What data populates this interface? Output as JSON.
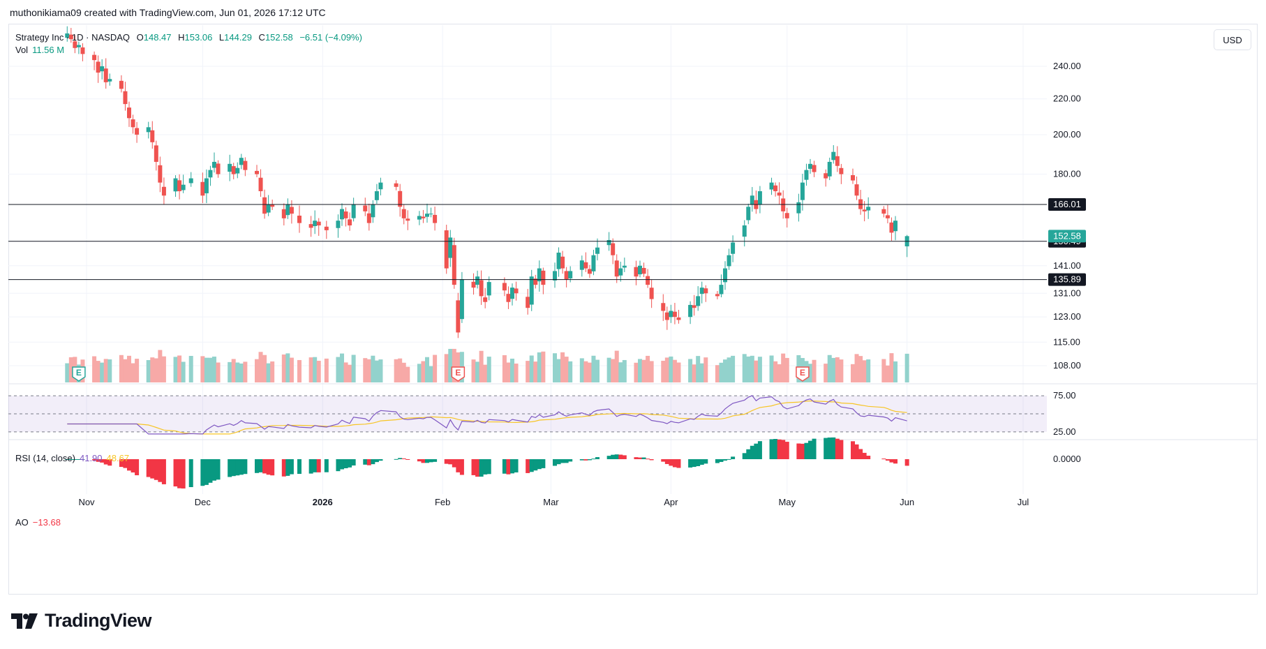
{
  "header": {
    "creator": "muthonikiama09 created with TradingView.com, Jun 01, 2026 17:12 UTC"
  },
  "legend": {
    "symbol": "Strategy Inc · 1D · NASDAQ",
    "open_label": "O",
    "open": "148.47",
    "high_label": "H",
    "high": "153.06",
    "low_label": "L",
    "low": "144.29",
    "close_label": "C",
    "close": "152.58",
    "change": "−6.51 (−4.09%)",
    "vol_label": "Vol",
    "vol": "11.56 M"
  },
  "rsi_legend": {
    "label": "RSI (14, close)",
    "rsi": "41.90",
    "ma": "48.67"
  },
  "ao_legend": {
    "label": "AO",
    "value": "−13.68"
  },
  "currency": "USD",
  "brand": {
    "name": "TradingView"
  },
  "colors": {
    "up": "#26a69a",
    "down": "#ef5350",
    "vol_up": "#92d2cc",
    "vol_down": "#f7a9a7",
    "rsi": "#7e57c2",
    "rsi_ma": "#f7c525",
    "ao_up": "#089981",
    "ao_down": "#f23645"
  },
  "chart_data": {
    "type": "candlestick",
    "symbol": "Strategy Inc",
    "interval": "1D",
    "exchange": "NASDAQ",
    "x_labels": [
      "Nov",
      "Dec",
      "2026",
      "Feb",
      "Mar",
      "Apr",
      "May",
      "Jun",
      "Jul"
    ],
    "x_label_dates": [
      "2025-11-01",
      "2025-12-01",
      "2026-01-01",
      "2026-02-01",
      "2026-03-01",
      "2026-04-01",
      "2026-05-01",
      "2026-06-01",
      "2026-07-01"
    ],
    "price_axis": {
      "scale": "log",
      "ticks": [
        "240.00",
        "220.00",
        "200.00",
        "180.00",
        "141.00",
        "131.00",
        "123.00",
        "115.00",
        "108.00"
      ]
    },
    "horizontal_lines": [
      "166.01",
      "150.49",
      "135.89"
    ],
    "last_price": "152.58",
    "events": [
      {
        "date": "2025-10-30",
        "label": "E"
      },
      {
        "date": "2026-02-05",
        "label": "E"
      },
      {
        "date": "2026-05-05",
        "label": "E"
      }
    ],
    "closes": [
      [
        "2025-10-27",
        262
      ],
      [
        "2025-10-28",
        258
      ],
      [
        "2025-10-29",
        252
      ],
      [
        "2025-10-30",
        254
      ],
      [
        "2025-10-31",
        248
      ],
      [
        "2025-11-03",
        244
      ],
      [
        "2025-11-04",
        236
      ],
      [
        "2025-11-05",
        240
      ],
      [
        "2025-11-06",
        230
      ],
      [
        "2025-11-07",
        232
      ],
      [
        "2025-11-10",
        226
      ],
      [
        "2025-11-11",
        217
      ],
      [
        "2025-11-12",
        209
      ],
      [
        "2025-11-13",
        204
      ],
      [
        "2025-11-14",
        200
      ],
      [
        "2025-11-17",
        204
      ],
      [
        "2025-11-18",
        196
      ],
      [
        "2025-11-19",
        186
      ],
      [
        "2025-11-20",
        176
      ],
      [
        "2025-11-21",
        170
      ],
      [
        "2025-11-24",
        178
      ],
      [
        "2025-11-25",
        172
      ],
      [
        "2025-11-26",
        175
      ],
      [
        "2025-11-28",
        178
      ],
      [
        "2025-12-01",
        170
      ],
      [
        "2025-12-02",
        178
      ],
      [
        "2025-12-03",
        182
      ],
      [
        "2025-12-04",
        186
      ],
      [
        "2025-12-05",
        180
      ],
      [
        "2025-12-08",
        185
      ],
      [
        "2025-12-09",
        180
      ],
      [
        "2025-12-10",
        183
      ],
      [
        "2025-12-11",
        188
      ],
      [
        "2025-12-12",
        182
      ],
      [
        "2025-12-15",
        180
      ],
      [
        "2025-12-16",
        172
      ],
      [
        "2025-12-17",
        162
      ],
      [
        "2025-12-18",
        166
      ],
      [
        "2025-12-19",
        165
      ],
      [
        "2025-12-22",
        160
      ],
      [
        "2025-12-23",
        166
      ],
      [
        "2025-12-24",
        162
      ],
      [
        "2025-12-26",
        158
      ],
      [
        "2025-12-29",
        156
      ],
      [
        "2025-12-30",
        159
      ],
      [
        "2025-12-31",
        157
      ],
      [
        "2026-01-02",
        155
      ],
      [
        "2026-01-05",
        159
      ],
      [
        "2026-01-06",
        164
      ],
      [
        "2026-01-07",
        160
      ],
      [
        "2026-01-08",
        157
      ],
      [
        "2026-01-09",
        166
      ],
      [
        "2026-01-12",
        163
      ],
      [
        "2026-01-13",
        158
      ],
      [
        "2026-01-14",
        166
      ],
      [
        "2026-01-15",
        172
      ],
      [
        "2026-01-16",
        176
      ],
      [
        "2026-01-20",
        174
      ],
      [
        "2026-01-21",
        165
      ],
      [
        "2026-01-22",
        160
      ],
      [
        "2026-01-23",
        159
      ],
      [
        "2026-01-26",
        161
      ],
      [
        "2026-01-27",
        160
      ],
      [
        "2026-01-28",
        162
      ],
      [
        "2026-01-29",
        162
      ],
      [
        "2026-01-30",
        158
      ],
      [
        "2026-02-02",
        140
      ],
      [
        "2026-02-03",
        152
      ],
      [
        "2026-02-04",
        134
      ],
      [
        "2026-02-05",
        118
      ],
      [
        "2026-02-06",
        136
      ],
      [
        "2026-02-09",
        133
      ],
      [
        "2026-02-10",
        137
      ],
      [
        "2026-02-11",
        130
      ],
      [
        "2026-02-12",
        128
      ],
      [
        "2026-02-13",
        135
      ],
      [
        "2026-02-17",
        132
      ],
      [
        "2026-02-18",
        128
      ],
      [
        "2026-02-19",
        133
      ],
      [
        "2026-02-20",
        131
      ],
      [
        "2026-02-23",
        126
      ],
      [
        "2026-02-24",
        137
      ],
      [
        "2026-02-25",
        134
      ],
      [
        "2026-02-26",
        140
      ],
      [
        "2026-02-27",
        134
      ],
      [
        "2026-03-02",
        139
      ],
      [
        "2026-03-03",
        146
      ],
      [
        "2026-03-04",
        140
      ],
      [
        "2026-03-05",
        136
      ],
      [
        "2026-03-06",
        139
      ],
      [
        "2026-03-09",
        143
      ],
      [
        "2026-03-10",
        140
      ],
      [
        "2026-03-11",
        138
      ],
      [
        "2026-03-12",
        145
      ],
      [
        "2026-03-13",
        148
      ],
      [
        "2026-03-16",
        151
      ],
      [
        "2026-03-17",
        145
      ],
      [
        "2026-03-18",
        137
      ],
      [
        "2026-03-19",
        140
      ],
      [
        "2026-03-20",
        141
      ],
      [
        "2026-03-23",
        137
      ],
      [
        "2026-03-24",
        141
      ],
      [
        "2026-03-25",
        138
      ],
      [
        "2026-03-26",
        134
      ],
      [
        "2026-03-27",
        129
      ],
      [
        "2026-03-30",
        125
      ],
      [
        "2026-03-31",
        122
      ],
      [
        "2026-04-01",
        125
      ],
      [
        "2026-04-02",
        123
      ],
      [
        "2026-04-03",
        122
      ],
      [
        "2026-04-06",
        127
      ],
      [
        "2026-04-07",
        126
      ],
      [
        "2026-04-08",
        130
      ],
      [
        "2026-04-09",
        133
      ],
      [
        "2026-04-10",
        131
      ],
      [
        "2026-04-13",
        130
      ],
      [
        "2026-04-14",
        134
      ],
      [
        "2026-04-15",
        140
      ],
      [
        "2026-04-16",
        145
      ],
      [
        "2026-04-17",
        150
      ],
      [
        "2026-04-20",
        157
      ],
      [
        "2026-04-21",
        165
      ],
      [
        "2026-04-22",
        170
      ],
      [
        "2026-04-23",
        164
      ],
      [
        "2026-04-24",
        172
      ],
      [
        "2026-04-27",
        176
      ],
      [
        "2026-04-28",
        172
      ],
      [
        "2026-04-29",
        170
      ],
      [
        "2026-04-30",
        163
      ],
      [
        "2026-05-01",
        160
      ],
      [
        "2026-05-04",
        167
      ],
      [
        "2026-05-05",
        176
      ],
      [
        "2026-05-06",
        182
      ],
      [
        "2026-05-07",
        185
      ],
      [
        "2026-05-08",
        181
      ],
      [
        "2026-05-11",
        178
      ],
      [
        "2026-05-12",
        186
      ],
      [
        "2026-05-13",
        191
      ],
      [
        "2026-05-14",
        184
      ],
      [
        "2026-05-15",
        180
      ],
      [
        "2026-05-18",
        177
      ],
      [
        "2026-05-19",
        170
      ],
      [
        "2026-05-20",
        164
      ],
      [
        "2026-05-21",
        163
      ],
      [
        "2026-05-22",
        165
      ],
      [
        "2026-05-26",
        162
      ],
      [
        "2026-05-27",
        160
      ],
      [
        "2026-05-28",
        154
      ],
      [
        "2026-05-29",
        159
      ],
      [
        "2026-06-01",
        152.58
      ]
    ],
    "volume": {
      "last": "11.56 M",
      "unit": "M"
    },
    "rsi": {
      "period": 14,
      "source": "close",
      "last": 41.9,
      "ma_last": 48.67,
      "bands": [
        "75.00",
        "25.00"
      ]
    },
    "ao": {
      "last": -13.68,
      "zero_label": "0.0000"
    }
  }
}
